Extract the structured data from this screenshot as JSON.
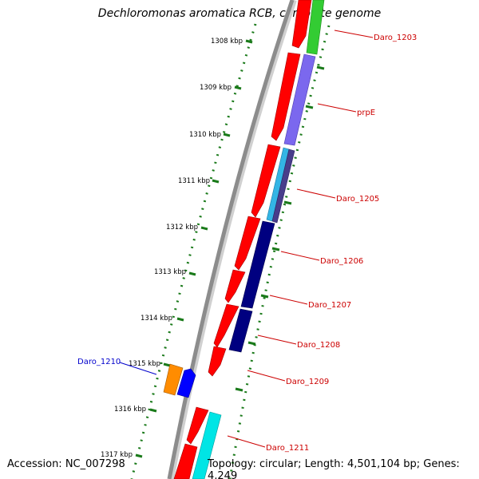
{
  "title": "Dechloromonas aromatica RCB, complete genome",
  "accession": "Accession: NC_007298",
  "topology": "Topology: circular; Length: 4,501,104 bp; Genes: 4,249",
  "ruler_labels": [
    "1308 kbp",
    "1309 kbp",
    "1310 kbp",
    "1311 kbp",
    "1312 kbp",
    "1313 kbp",
    "1314 kbp",
    "1315 kbp",
    "1316 kbp",
    "1317 kbp"
  ],
  "gene_labels": [
    {
      "text": "Daro_1203",
      "color": "#cc0000"
    },
    {
      "text": "prpE",
      "color": "#cc0000"
    },
    {
      "text": "Daro_1205",
      "color": "#cc0000"
    },
    {
      "text": "Daro_1206",
      "color": "#cc0000"
    },
    {
      "text": "Daro_1207",
      "color": "#cc0000"
    },
    {
      "text": "Daro_1208",
      "color": "#cc0000"
    },
    {
      "text": "Daro_1209",
      "color": "#cc0000"
    },
    {
      "text": "Daro_1210",
      "color": "#0000cc"
    },
    {
      "text": "Daro_1211",
      "color": "#cc0000"
    }
  ],
  "colors": {
    "cds": "#ff0000",
    "backbone": "#8c8c8c",
    "ruler": "#1a7a1a",
    "green_gene": "#33cc33",
    "purple_gene": "#7b68ee",
    "sky_gene": "#33b5e5",
    "navy_gene": "#000080",
    "orange_gene": "#ff8c00",
    "blue_gene": "#0000ff",
    "cyan_gene": "#00e5e5"
  }
}
